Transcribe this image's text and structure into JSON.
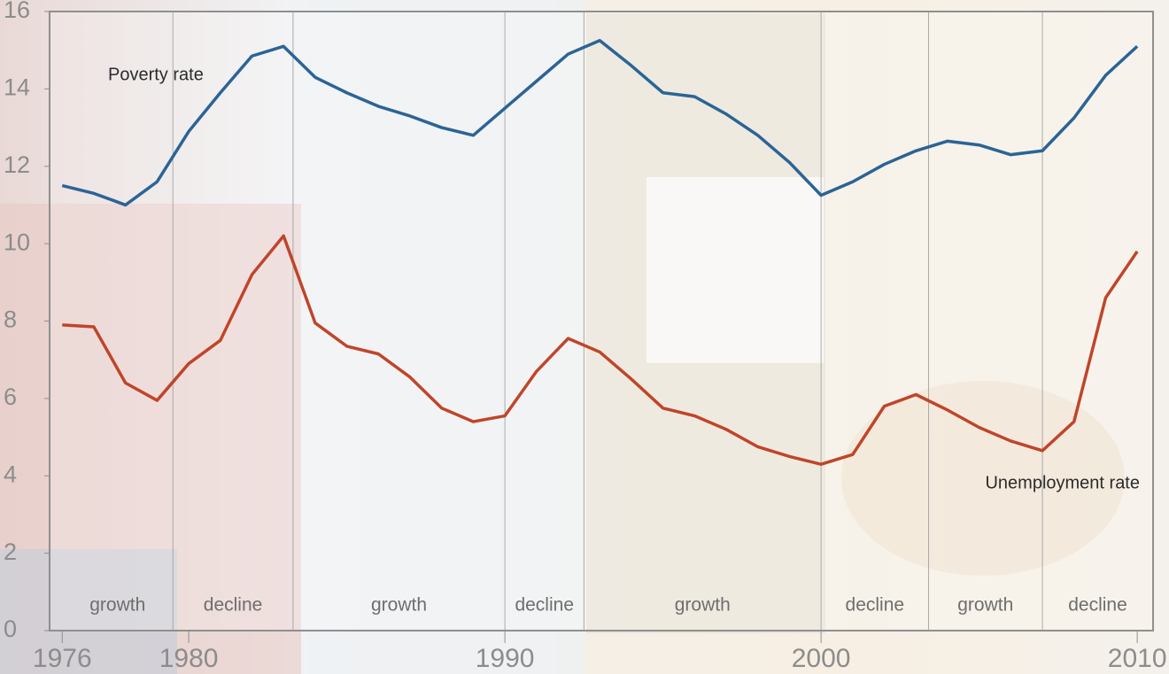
{
  "chart_data": {
    "type": "line",
    "x": [
      1976,
      1977,
      1978,
      1979,
      1980,
      1981,
      1982,
      1983,
      1984,
      1985,
      1986,
      1987,
      1988,
      1989,
      1990,
      1991,
      1992,
      1993,
      1994,
      1995,
      1996,
      1997,
      1998,
      1999,
      2000,
      2001,
      2002,
      2003,
      2004,
      2005,
      2006,
      2007,
      2008,
      2009,
      2010
    ],
    "series": [
      {
        "name": "Poverty rate",
        "color": "#2b6496",
        "values": [
          11.5,
          11.3,
          11.0,
          11.6,
          12.9,
          13.9,
          14.85,
          15.1,
          14.3,
          13.9,
          13.55,
          13.3,
          13.0,
          12.8,
          13.5,
          14.2,
          14.9,
          15.25,
          14.6,
          13.9,
          13.8,
          13.35,
          12.8,
          12.1,
          11.25,
          11.6,
          12.05,
          12.4,
          12.65,
          12.55,
          12.3,
          12.4,
          13.25,
          14.35,
          15.1
        ]
      },
      {
        "name": "Unemployment rate",
        "color": "#c0452a",
        "values": [
          7.9,
          7.85,
          6.4,
          5.95,
          6.9,
          7.5,
          9.2,
          10.2,
          7.95,
          7.35,
          7.15,
          6.55,
          5.75,
          5.4,
          5.55,
          6.7,
          7.55,
          7.2,
          6.5,
          5.75,
          5.55,
          5.2,
          4.75,
          4.5,
          4.3,
          4.55,
          5.8,
          6.1,
          5.7,
          5.25,
          4.9,
          4.65,
          5.4,
          8.6,
          9.8
        ]
      }
    ],
    "periods": [
      {
        "label": "growth",
        "start": 1976,
        "end": 1979.5
      },
      {
        "label": "decline",
        "start": 1979.5,
        "end": 1983.3
      },
      {
        "label": "growth",
        "start": 1983.3,
        "end": 1990
      },
      {
        "label": "decline",
        "start": 1990,
        "end": 1992.5
      },
      {
        "label": "growth",
        "start": 1992.5,
        "end": 2000
      },
      {
        "label": "decline",
        "start": 2000,
        "end": 2003.4
      },
      {
        "label": "growth",
        "start": 2003.4,
        "end": 2007
      },
      {
        "label": "decline",
        "start": 2007,
        "end": 2010.5
      }
    ],
    "xlim": [
      1975.6,
      2010.5
    ],
    "xticks": [
      1976,
      1980,
      1990,
      2000,
      2010
    ],
    "ylim": [
      0,
      16
    ],
    "yticks": [
      0,
      2,
      4,
      6,
      8,
      10,
      12,
      14,
      16
    ],
    "grid": false
  }
}
